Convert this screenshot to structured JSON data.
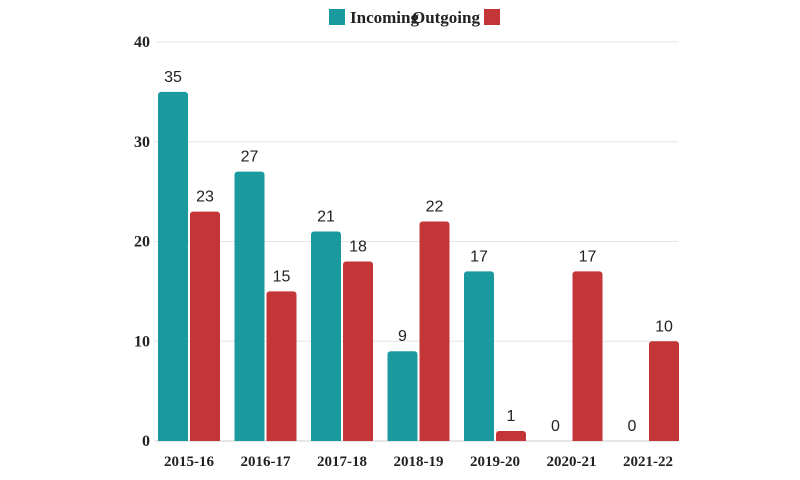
{
  "chart_data": {
    "type": "bar",
    "title": "",
    "xlabel": "",
    "ylabel": "",
    "categories": [
      "2015-16",
      "2016-17",
      "2017-18",
      "2018-19",
      "2019-20",
      "2020-21",
      "2021-22"
    ],
    "series": [
      {
        "name": "Incoming",
        "color": "#1a9a9f",
        "values": [
          35,
          27,
          21,
          9,
          17,
          0,
          0
        ]
      },
      {
        "name": "Outgoing",
        "color": "#c43538",
        "values": [
          23,
          15,
          18,
          22,
          1,
          17,
          10
        ]
      }
    ],
    "ylim": [
      0,
      40
    ],
    "yticks": [
      0,
      10,
      20,
      30,
      40
    ],
    "grid": true,
    "legend_position": "top-center"
  }
}
